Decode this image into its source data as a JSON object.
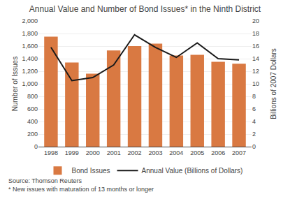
{
  "chart_data": {
    "type": "bar",
    "title": "Annual Value and Number of Bond Issues* in the Ninth District",
    "x": [
      1998,
      1999,
      2000,
      2001,
      2002,
      2003,
      2004,
      2005,
      2006,
      2007
    ],
    "xlim": [
      1997.4,
      2007.6
    ],
    "xticks": [
      1998,
      1999,
      2000,
      2001,
      2002,
      2003,
      2004,
      2005,
      2006,
      2007
    ],
    "ylim": [
      0,
      2000
    ],
    "yticks": [
      0,
      200,
      400,
      600,
      800,
      {
        "value": 1000,
        "label": "1,000"
      },
      {
        "value": 1200,
        "label": "1,200"
      },
      {
        "value": 1400,
        "label": "1,400"
      },
      {
        "value": 1600,
        "label": "1,600"
      },
      {
        "value": 1800,
        "label": "1,800"
      },
      {
        "value": 2000,
        "label": "2,000"
      }
    ],
    "y2lim": [
      0,
      20
    ],
    "y2ticks": [
      0,
      2,
      4,
      6,
      8,
      10,
      12,
      14,
      16,
      18,
      20
    ],
    "ylabel": "Number of Issues",
    "y2label": "Billions of 2007 Dollars",
    "series": [
      {
        "name": "Bond Issues",
        "type": "bar",
        "color": "#d97942",
        "values": [
          1750,
          1340,
          1160,
          1530,
          1600,
          1640,
          1450,
          1460,
          1350,
          1320
        ]
      },
      {
        "name": "Annual Value (Billions of Dollars)",
        "type": "line",
        "axis": "y2",
        "color": "#1a1a1a",
        "values": [
          15.8,
          10.5,
          11.0,
          13.0,
          17.8,
          15.8,
          14.2,
          16.5,
          14.0,
          13.8
        ]
      }
    ],
    "grid": true,
    "legend": "bottom",
    "annotations": [
      "Source: Thomson Reuters",
      "* New issues with maturation of 13 months or longer"
    ]
  }
}
